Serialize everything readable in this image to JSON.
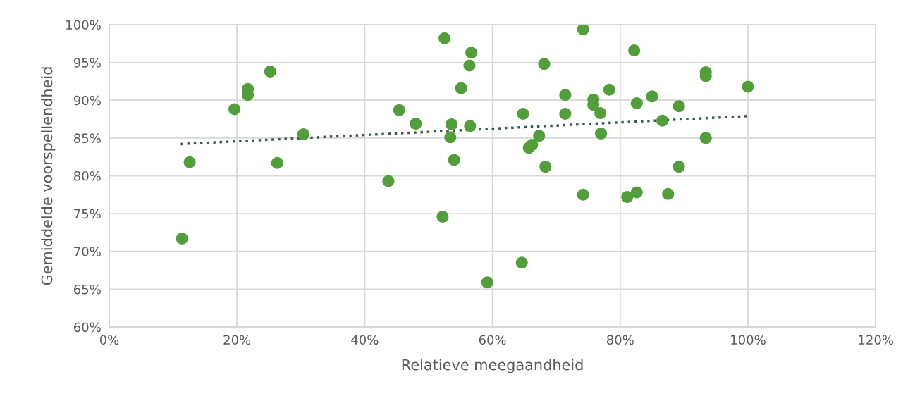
{
  "chart_data": {
    "type": "scatter",
    "xlabel": "Relatieve meegaandheid",
    "ylabel": "Gemiddelde voorspellendheid",
    "xlim": [
      0,
      120
    ],
    "ylim": [
      60,
      100
    ],
    "xticks": [
      {
        "value": 0,
        "label": "0%"
      },
      {
        "value": 20,
        "label": "20%"
      },
      {
        "value": 40,
        "label": "40%"
      },
      {
        "value": 60,
        "label": "60%"
      },
      {
        "value": 80,
        "label": "80%"
      },
      {
        "value": 100,
        "label": "100%"
      },
      {
        "value": 120,
        "label": "120%"
      }
    ],
    "yticks": [
      {
        "value": 60,
        "label": "60%"
      },
      {
        "value": 65,
        "label": "65%"
      },
      {
        "value": 70,
        "label": "70%"
      },
      {
        "value": 75,
        "label": "75%"
      },
      {
        "value": 80,
        "label": "80%"
      },
      {
        "value": 85,
        "label": "85%"
      },
      {
        "value": 90,
        "label": "90%"
      },
      {
        "value": 95,
        "label": "95%"
      },
      {
        "value": 100,
        "label": "100%"
      }
    ],
    "grid": true,
    "marker": "circle",
    "series": [
      {
        "color": "#519e3a",
        "x": [
          11.4,
          12.6,
          19.6,
          21.7,
          21.7,
          25.2,
          26.3,
          30.4,
          43.7,
          45.4,
          48.0,
          52.2,
          52.5,
          53.4,
          53.6,
          54.0,
          55.1,
          56.4,
          56.7,
          56.5,
          59.2,
          64.6,
          64.8,
          65.7,
          66.2,
          67.3,
          68.1,
          68.3,
          71.4,
          71.4,
          74.2,
          74.2,
          75.8,
          75.8,
          76.9,
          77.0,
          78.3,
          81.1,
          82.2,
          82.6,
          82.6,
          85.0,
          86.6,
          87.5,
          89.2,
          89.2,
          93.4,
          93.4,
          93.4,
          100.0
        ],
        "values": [
          71.7,
          81.8,
          88.8,
          91.5,
          90.7,
          93.8,
          81.7,
          85.5,
          79.3,
          88.7,
          86.9,
          74.6,
          98.2,
          85.1,
          86.8,
          82.1,
          91.6,
          94.6,
          96.3,
          86.6,
          65.9,
          68.5,
          88.2,
          83.7,
          84.1,
          85.3,
          94.8,
          81.2,
          90.7,
          88.2,
          77.5,
          99.4,
          90.1,
          89.4,
          88.3,
          85.6,
          91.4,
          77.2,
          96.6,
          89.6,
          77.8,
          90.5,
          87.3,
          77.6,
          89.2,
          81.2,
          93.7,
          93.2,
          85.0,
          91.8
        ]
      },
      {
        "type": "line",
        "color": "#3f5a4a",
        "line_style": "dotted",
        "marker": "none",
        "x": [
          11.2,
          100.0
        ],
        "values": [
          84.2,
          87.9
        ]
      }
    ]
  }
}
